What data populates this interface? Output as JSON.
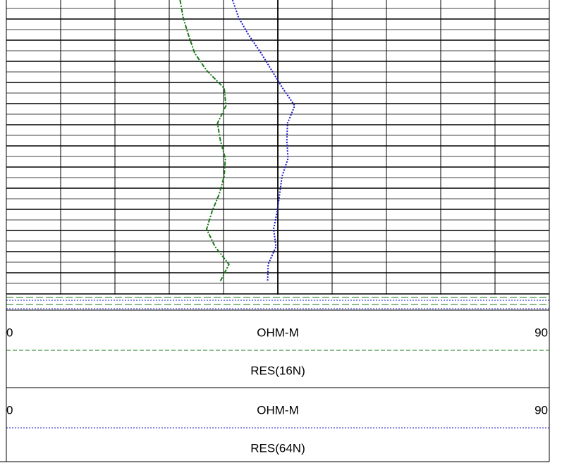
{
  "chart_data": {
    "type": "line",
    "orientation": "vertical",
    "categories": [
      null,
      null,
      null,
      null,
      null,
      null,
      null,
      null,
      null,
      null,
      null,
      null,
      null,
      null,
      null,
      null,
      null
    ],
    "series": [
      {
        "name": "RES(16N)",
        "color": "#1a7a1a",
        "style": "dashdot",
        "unit": "OHM-M",
        "xlim": [
          0,
          90
        ],
        "values": [
          28.8,
          29.3,
          30.2,
          31.2,
          33.2,
          36.1,
          36.4,
          35,
          35.5,
          36.3,
          36.1,
          35.3,
          34.1,
          33.2,
          34.6,
          36.9,
          35.4
        ]
      },
      {
        "name": "RES(64N)",
        "color": "#1a1acc",
        "style": "dotted",
        "unit": "OHM-M",
        "xlim": [
          0,
          90
        ],
        "values": [
          37.5,
          38.5,
          40.2,
          42.2,
          44,
          45.8,
          47.8,
          46.6,
          46.5,
          46.7,
          45.7,
          45.3,
          44.9,
          44.3,
          44.7,
          43.4,
          43.3
        ]
      }
    ]
  }
}
